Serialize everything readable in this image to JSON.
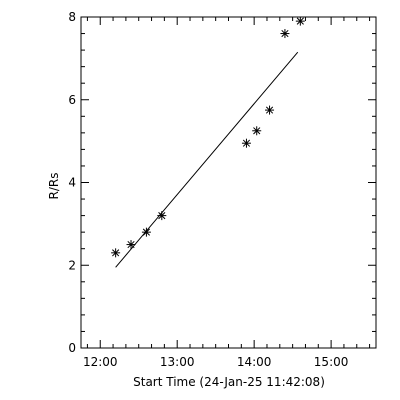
{
  "chart_data": {
    "type": "scatter",
    "title": "",
    "xlabel": "Start Time (24-Jan-25 11:42:08)",
    "ylabel": "R/Rs",
    "x_ticks": [
      "12:00",
      "13:00",
      "14:00",
      "15:00"
    ],
    "y_ticks": [
      "0",
      "2",
      "4",
      "6",
      "8"
    ],
    "xlim": [
      "11:45",
      "15:35"
    ],
    "ylim": [
      0,
      8
    ],
    "marker": "asterisk",
    "grid": false,
    "series": [
      {
        "type": "scatter",
        "x": [
          "12:12",
          "12:24",
          "12:36",
          "12:48",
          "13:54",
          "14:02",
          "14:12",
          "14:24",
          "14:36"
        ],
        "y": [
          2.3,
          2.5,
          2.8,
          3.2,
          4.95,
          5.25,
          5.75,
          7.6,
          7.9
        ]
      },
      {
        "type": "line",
        "x": [
          "12:12",
          "14:34"
        ],
        "y": [
          1.95,
          7.15
        ]
      }
    ]
  }
}
